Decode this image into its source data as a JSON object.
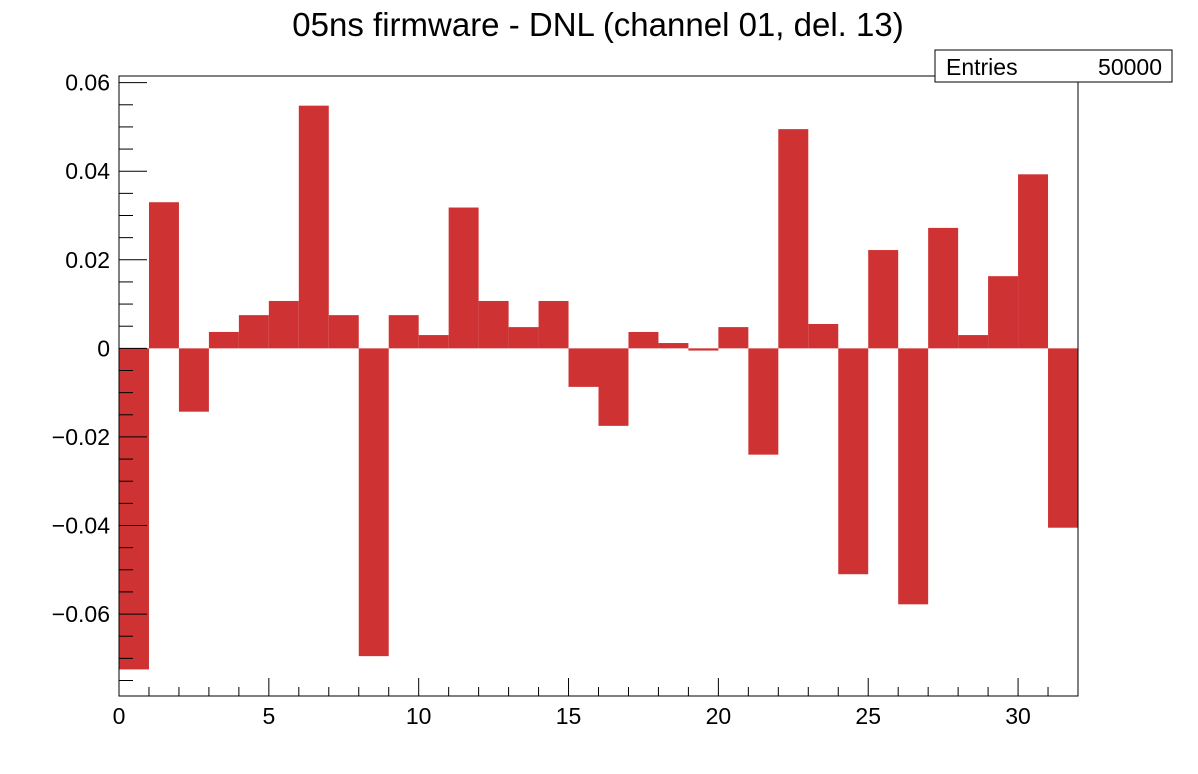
{
  "chart_data": {
    "type": "bar",
    "title": "05ns firmware - DNL (channel 01, del. 13)",
    "stats": {
      "label": "Entries",
      "value": "50000"
    },
    "bar_color": "#cf3233",
    "xlim": [
      0,
      32
    ],
    "ylim": [
      -0.0785,
      0.0615
    ],
    "x_major_ticks": [
      0,
      5,
      10,
      15,
      20,
      25,
      30
    ],
    "x_tick_labels": [
      "0",
      "5",
      "10",
      "15",
      "20",
      "25",
      "30"
    ],
    "y_major_ticks": [
      -0.06,
      -0.04,
      -0.02,
      0,
      0.02,
      0.04,
      0.06
    ],
    "y_tick_labels": [
      "−0.06",
      "−0.04",
      "−0.02",
      "0",
      "0.02",
      "0.04",
      "0.06"
    ],
    "bin_width": 1,
    "values": [
      -0.0725,
      0.033,
      -0.0143,
      0.0037,
      0.0075,
      0.0107,
      0.0548,
      0.0075,
      -0.0695,
      0.0075,
      0.003,
      0.0318,
      0.0107,
      0.0048,
      0.0107,
      -0.0087,
      -0.0175,
      0.0037,
      0.0012,
      -0.0005,
      0.0048,
      -0.024,
      0.0495,
      0.0055,
      -0.051,
      0.0222,
      -0.0578,
      0.0272,
      0.003,
      0.0163,
      0.0393,
      -0.0405
    ]
  }
}
